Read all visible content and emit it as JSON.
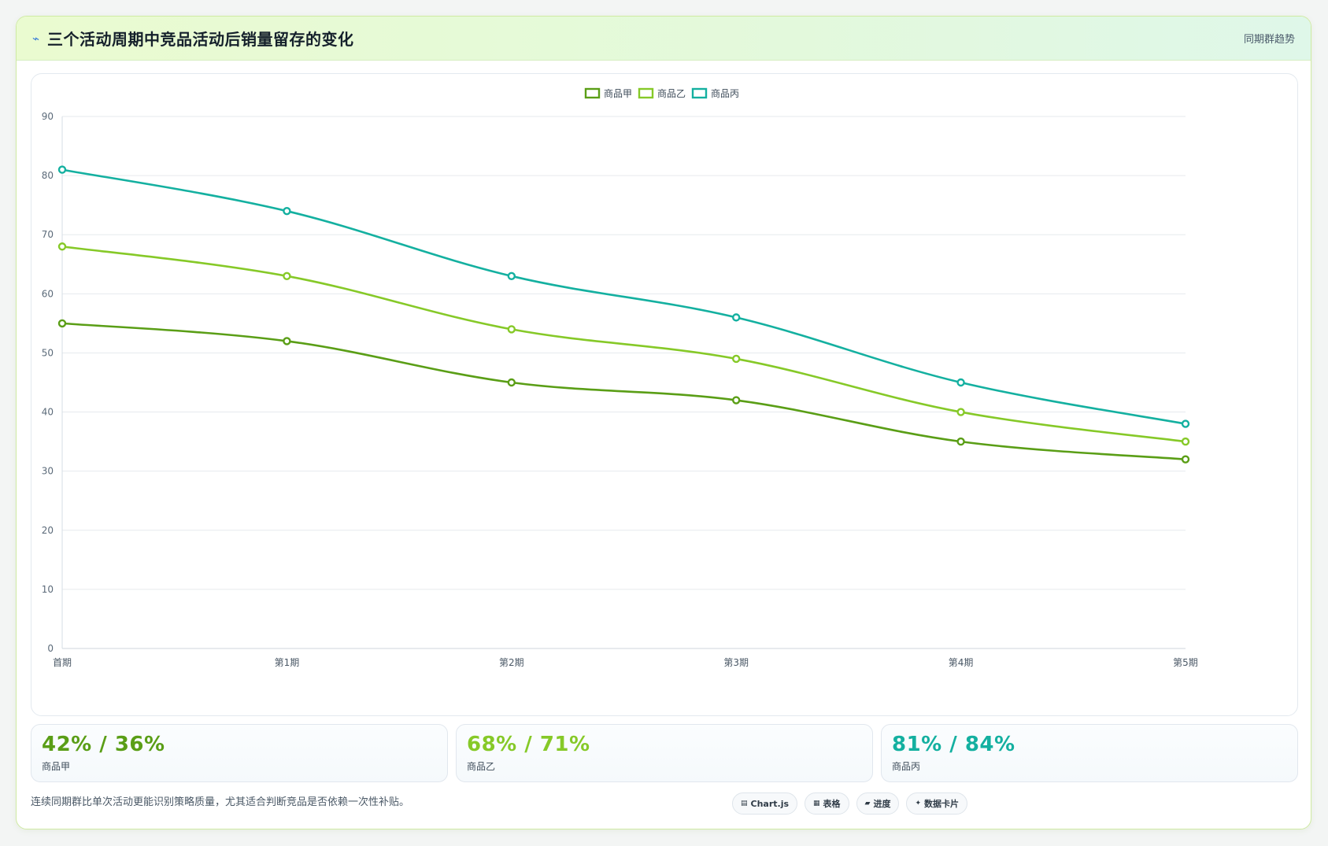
{
  "header": {
    "icon": "lightning-icon",
    "title": "三个活动周期中竞品活动后销量留存的变化",
    "tag": "同期群趋势"
  },
  "chart_data": {
    "type": "line",
    "categories": [
      "首期",
      "第1期",
      "第2期",
      "第3期",
      "第4期",
      "第5期"
    ],
    "series": [
      {
        "name": "商品甲",
        "color": "#5a9e16",
        "values": [
          55,
          52,
          45,
          42,
          35,
          32
        ]
      },
      {
        "name": "商品乙",
        "color": "#86c928",
        "values": [
          68,
          63,
          54,
          49,
          40,
          35
        ]
      },
      {
        "name": "商品丙",
        "color": "#14b0a0",
        "values": [
          81,
          74,
          63,
          56,
          45,
          38
        ]
      }
    ],
    "ylim": [
      0,
      90
    ],
    "yticks": [
      0,
      10,
      20,
      30,
      40,
      50,
      60,
      70,
      80,
      90
    ],
    "legend_position": "top-center",
    "grid": true,
    "smooth": true
  },
  "stats": [
    {
      "value": "42% / 36%",
      "label": "商品甲",
      "color": "#5a9e16"
    },
    {
      "value": "68% / 71%",
      "label": "商品乙",
      "color": "#86c928"
    },
    {
      "value": "81% / 84%",
      "label": "商品丙",
      "color": "#14b0a0"
    }
  ],
  "footer": {
    "note": "连续同期群比单次活动更能识别策略质量，尤其适合判断竞品是否依赖一次性补贴。",
    "chips": [
      {
        "icon": "chart-icon",
        "glyph": "▤",
        "label": "Chart.js"
      },
      {
        "icon": "table-icon",
        "glyph": "▦",
        "label": "表格"
      },
      {
        "icon": "progress-icon",
        "glyph": "▰",
        "label": "进度"
      },
      {
        "icon": "sparkle-icon",
        "glyph": "✦",
        "label": "数据卡片"
      }
    ]
  }
}
